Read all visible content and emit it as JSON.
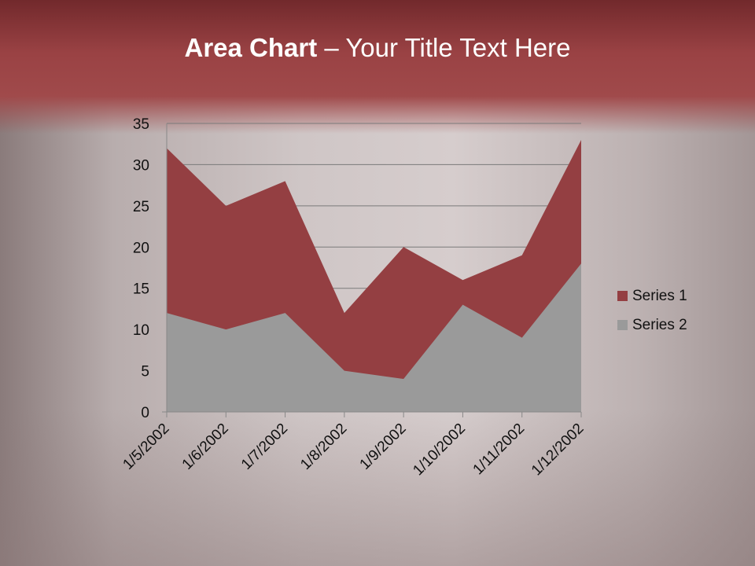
{
  "slide": {
    "title_bold": "Area Chart",
    "title_rest": " – Your Title Text Here"
  },
  "chart_data": {
    "type": "area",
    "title": "",
    "categories": [
      "1/5/2002",
      "1/6/2002",
      "1/7/2002",
      "1/8/2002",
      "1/9/2002",
      "1/10/2002",
      "1/11/2002",
      "1/12/2002"
    ],
    "series": [
      {
        "name": "Series 1",
        "color": "#943f42",
        "values": [
          32,
          25,
          28,
          12,
          20,
          16,
          19,
          33
        ]
      },
      {
        "name": "Series 2",
        "color": "#9a9a9a",
        "values": [
          12,
          10,
          12,
          5,
          4,
          13,
          9,
          18
        ]
      }
    ],
    "ylim": [
      0,
      35
    ],
    "yticks": [
      0,
      5,
      10,
      15,
      20,
      25,
      30,
      35
    ],
    "grid": true,
    "legend": "right"
  }
}
